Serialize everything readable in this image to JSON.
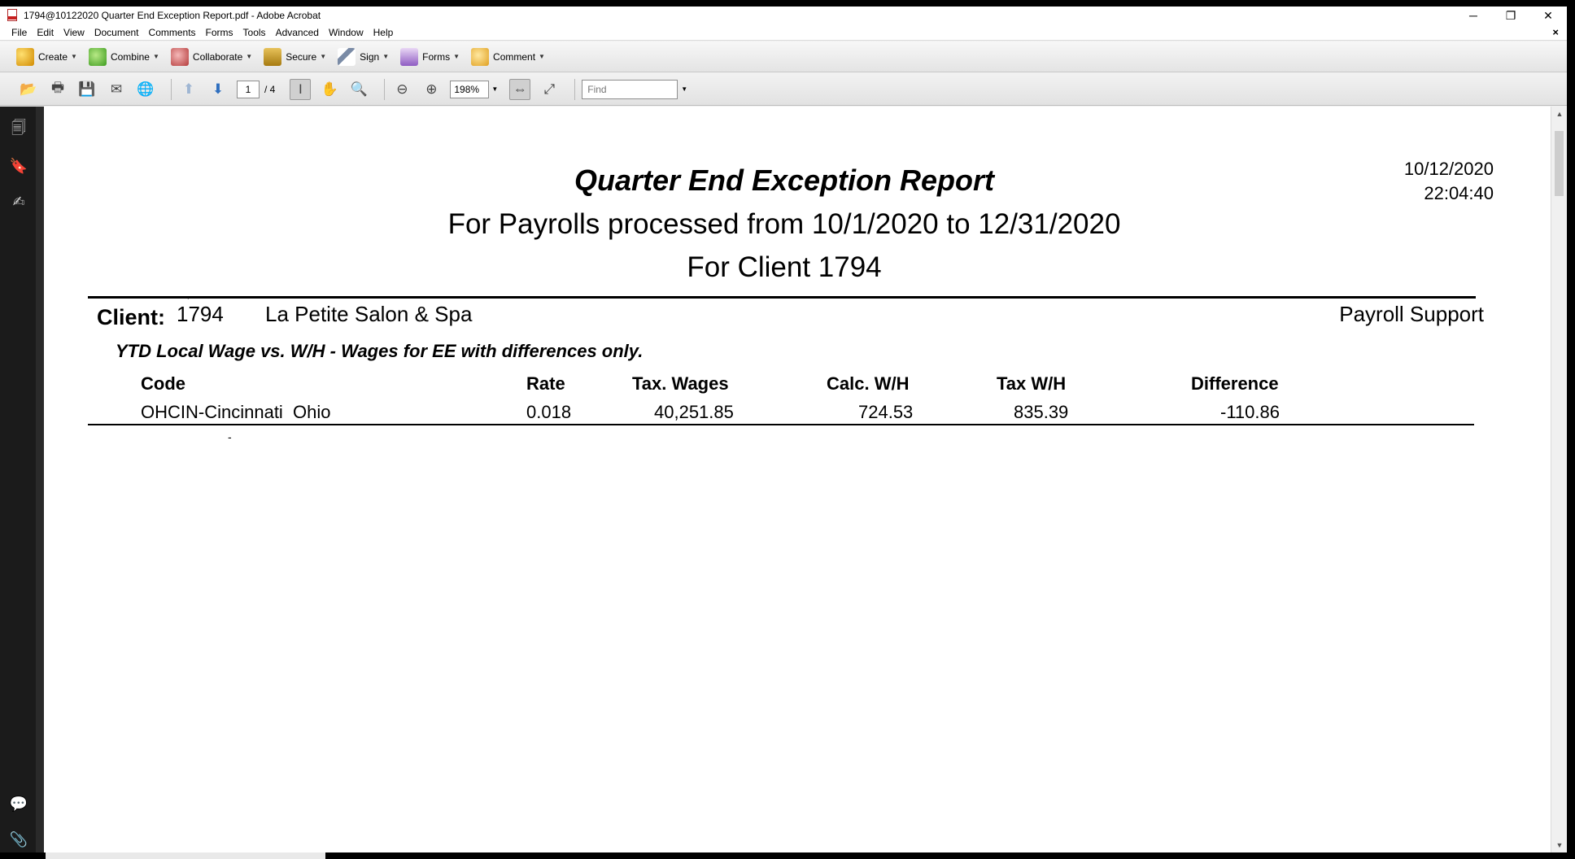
{
  "window": {
    "title": "1794@10122020 Quarter End Exception Report.pdf - Adobe Acrobat",
    "controls": {
      "minimize": "─",
      "restore": "❐",
      "close": "✕"
    }
  },
  "menu": [
    "File",
    "Edit",
    "View",
    "Document",
    "Comments",
    "Forms",
    "Tools",
    "Advanced",
    "Window",
    "Help"
  ],
  "menu_close": "×",
  "tasks": [
    "Create",
    "Combine",
    "Collaborate",
    "Secure",
    "Sign",
    "Forms",
    "Comment"
  ],
  "nav": {
    "current_page": "1",
    "total_pages": "/ 4",
    "zoom": "198%",
    "find_placeholder": "Find"
  },
  "report": {
    "title": "Quarter End Exception Report",
    "subtitle": "For Payrolls processed from 10/1/2020 to 12/31/2020",
    "client_line": "For Client 1794",
    "date": "10/12/2020",
    "time": "22:04:40",
    "client_label": "Client:",
    "client_number": "1794",
    "client_name": "La Petite Salon & Spa",
    "department": "Payroll Support",
    "section_title": "YTD Local Wage vs. W/H - Wages for EE with differences only.",
    "columns": {
      "code": "Code",
      "rate": "Rate",
      "wages": "Tax. Wages",
      "calc": "Calc. W/H",
      "tax": "Tax W/H",
      "diff": "Difference"
    },
    "row": {
      "code": "OHCIN-Cincinnati  Ohio",
      "rate": "0.018",
      "wages": "40,251.85",
      "calc": "724.53",
      "tax": "835.39",
      "diff": "-110.86"
    }
  }
}
